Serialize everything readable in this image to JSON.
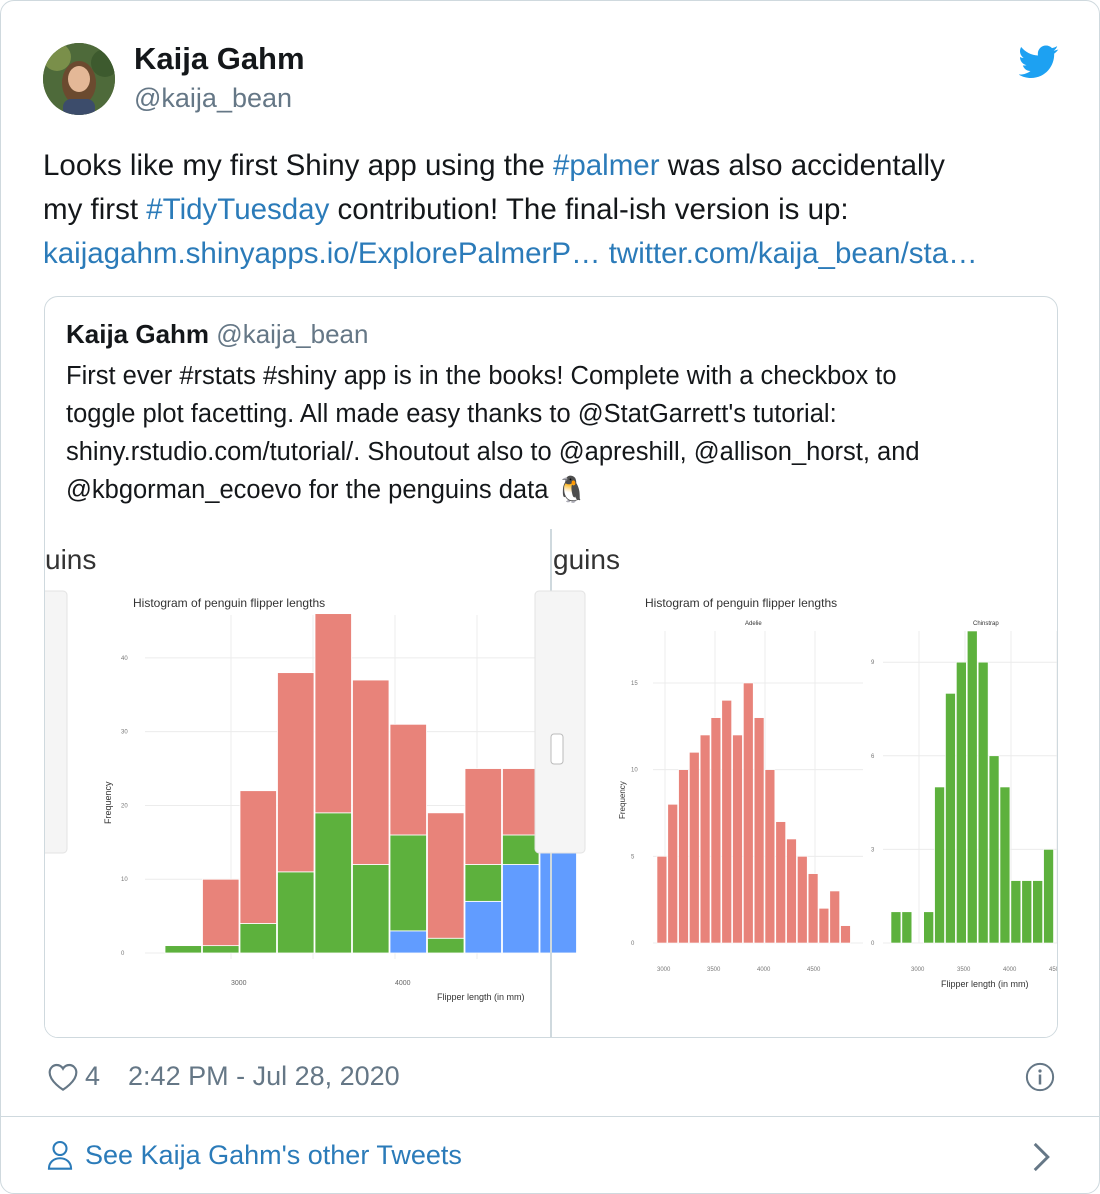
{
  "author": {
    "name": "Kaija Gahm",
    "handle": "@kaija_bean"
  },
  "tweet": {
    "line1_a": "Looks like my first Shiny app using the ",
    "line1_tag": "#palmer",
    "line1_b": " was also accidentally",
    "line2_a": "my first ",
    "line2_tag": "#TidyTuesday",
    "line2_b": " contribution! The final-ish version is up:",
    "link1": "kaijagahm.shinyapps.io/ExplorePalmerP…",
    "link2": "twitter.com/kaija_bean/sta…"
  },
  "quoted": {
    "name": "Kaija Gahm",
    "handle": "@kaija_bean",
    "line1": "First ever #rstats #shiny app is in the books! Complete with a checkbox to",
    "line2": "toggle plot facetting. All made easy thanks to @StatGarrett's tutorial:",
    "line3": "shiny.rstudio.com/tutorial/. Shoutout also to @apreshill, @allison_horst, and",
    "line4": "@kbgorman_ecoevo for the penguins data 🐧",
    "left_shot": {
      "heading": "uins",
      "chart_title": "Histogram of penguin flipper lengths",
      "ylabel": "Frequency",
      "xlabel": "Flipper length (in mm)",
      "yticks": [
        "0",
        "10",
        "20",
        "30",
        "40"
      ],
      "xticks": [
        "3000",
        "4000"
      ]
    },
    "right_shot": {
      "heading": "guins",
      "chart_title": "Histogram of penguin flipper lengths",
      "ylabel": "Frequency",
      "xlabel": "Flipper length (in mm)",
      "facet_adelie": "Adelie",
      "facet_chinstrap": "Chinstrap",
      "yticks_adelie": [
        "0",
        "5",
        "10",
        "15"
      ],
      "yticks_chinstrap": [
        "0",
        "3",
        "6",
        "9"
      ],
      "xticks_adelie": [
        "3000",
        "3500",
        "4000",
        "4500"
      ],
      "xticks_chinstrap": [
        "3000",
        "3500",
        "4000",
        "450"
      ]
    }
  },
  "chart_data": [
    {
      "type": "bar",
      "title": "Histogram of penguin flipper lengths",
      "xlabel": "Flipper length (in mm)",
      "ylabel": "Frequency",
      "ylim": [
        0,
        45
      ],
      "stacked": true,
      "series": [
        {
          "name": "",
          "color": "#619cff",
          "values": [
            0,
            0,
            0,
            0,
            0,
            0,
            3,
            0,
            7,
            12,
            20
          ]
        },
        {
          "name": "",
          "color": "#5db13d",
          "values": [
            1,
            1,
            4,
            11,
            19,
            12,
            13,
            2,
            5,
            4,
            1
          ]
        },
        {
          "name": "",
          "color": "#e8837a",
          "values": [
            0,
            9,
            18,
            27,
            27,
            25,
            15,
            17,
            13,
            9,
            5
          ]
        }
      ]
    },
    {
      "type": "bar",
      "facet": "Adelie",
      "title": "Adelie",
      "ylim": [
        0,
        18
      ],
      "series": [
        {
          "name": "",
          "color": "#e8837a",
          "values": [
            5,
            8,
            10,
            11,
            12,
            13,
            14,
            12,
            15,
            13,
            10,
            7,
            6,
            5,
            4,
            2,
            3,
            1
          ]
        }
      ]
    },
    {
      "type": "bar",
      "facet": "Chinstrap",
      "title": "Chinstrap",
      "ylim": [
        0,
        10
      ],
      "series": [
        {
          "name": "",
          "color": "#5db13d",
          "values": [
            1,
            1,
            0,
            1,
            5,
            8,
            9,
            10,
            9,
            6,
            5,
            2,
            2,
            2,
            3
          ]
        }
      ]
    }
  ],
  "footer": {
    "likes": "4",
    "timestamp": "2:42 PM - Jul 28, 2020",
    "see_more": "See Kaija Gahm's other Tweets"
  },
  "colors": {
    "twitter_blue": "#1da1f2",
    "link": "#2b7bb9",
    "secondary": "#657786",
    "border": "#cfd9de"
  },
  "icons": {
    "bird": "twitter-bird-icon",
    "heart": "heart-icon",
    "info": "info-icon",
    "person": "person-icon",
    "chevron": "chevron-right-icon"
  }
}
